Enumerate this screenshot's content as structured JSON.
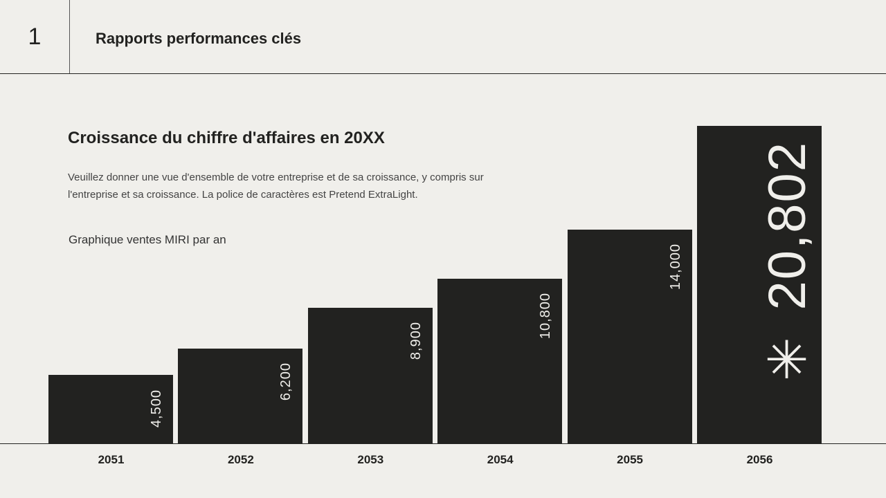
{
  "header": {
    "slide_number": "1",
    "title": "Rapports performances clés"
  },
  "content": {
    "title": "Croissance du chiffre d'affaires en 20XX",
    "description": "Veuillez donner une vue d'ensemble de votre entreprise et de sa croissance, y compris sur l'entreprise et sa croissance. La police de caractères est Pretend ExtraLight.",
    "chart_caption": "Graphique ventes MIRI par an"
  },
  "chart_data": {
    "type": "bar",
    "title": "Graphique ventes MIRI par an",
    "categories": [
      "2051",
      "2052",
      "2053",
      "2054",
      "2055",
      "2056"
    ],
    "values": [
      4500,
      6200,
      8900,
      10800,
      14000,
      20802
    ],
    "data_labels": [
      "4,500",
      "6,200",
      "8,900",
      "10,800",
      "14,000",
      "✳ 20,802"
    ],
    "highlight_index": 5,
    "ylim": [
      0,
      20802
    ],
    "grid": false,
    "bar_color": "#222220",
    "label_color": "#f0efeb"
  }
}
